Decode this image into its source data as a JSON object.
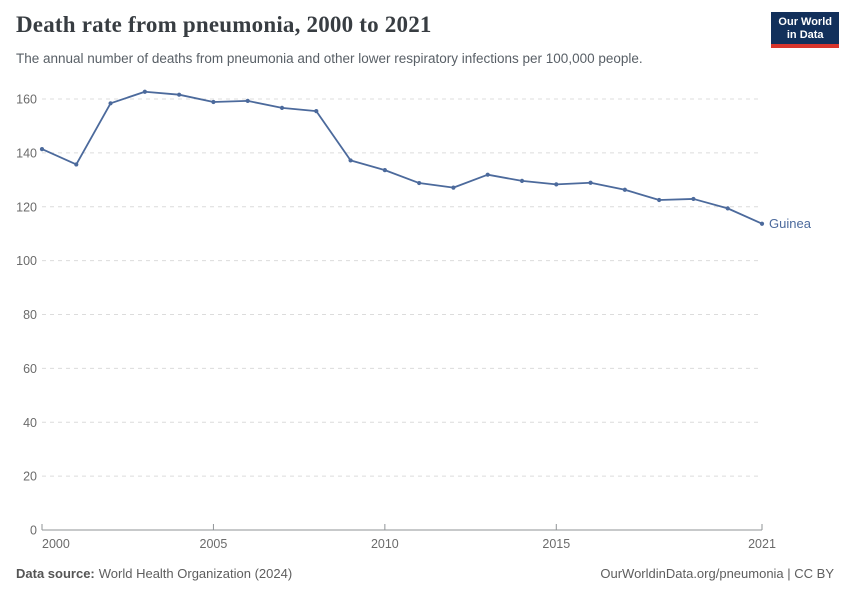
{
  "header": {
    "title": "Death rate from pneumonia, 2000 to 2021",
    "subtitle": "The annual number of deaths from pneumonia and other lower respiratory infections per 100,000 people.",
    "logo": {
      "line1": "Our World",
      "line2": "in Data"
    }
  },
  "chart_data": {
    "type": "line",
    "title": "Death rate from pneumonia, 2000 to 2021",
    "x": [
      2000,
      2001,
      2002,
      2003,
      2004,
      2005,
      2006,
      2007,
      2008,
      2009,
      2010,
      2011,
      2012,
      2013,
      2014,
      2015,
      2016,
      2017,
      2018,
      2019,
      2020,
      2021
    ],
    "series": [
      {
        "name": "Guinea",
        "color": "#4C6A9C",
        "values": [
          141.4,
          135.7,
          158.4,
          162.7,
          161.6,
          158.9,
          159.3,
          156.7,
          155.5,
          137.2,
          133.6,
          128.8,
          127.1,
          131.9,
          129.6,
          128.3,
          128.9,
          126.3,
          122.5,
          122.9,
          119.4,
          113.7
        ]
      }
    ],
    "ylim": [
      0,
      160
    ],
    "yticks": [
      0,
      20,
      40,
      60,
      80,
      100,
      120,
      140,
      160
    ],
    "xticks": [
      2000,
      2005,
      2010,
      2015,
      2021
    ],
    "grid": "horizontal-dashed",
    "legend_position": "end-of-line-label"
  },
  "footer": {
    "source_label": "Data source:",
    "source_value": "World Health Organization (2024)",
    "credit": "OurWorldinData.org/pneumonia | CC BY"
  },
  "colors": {
    "line": "#4C6A9C",
    "logo_bg": "#12305b",
    "logo_red": "#d8352c",
    "grid": "#dcdcdc",
    "axis": "#8f9396"
  }
}
